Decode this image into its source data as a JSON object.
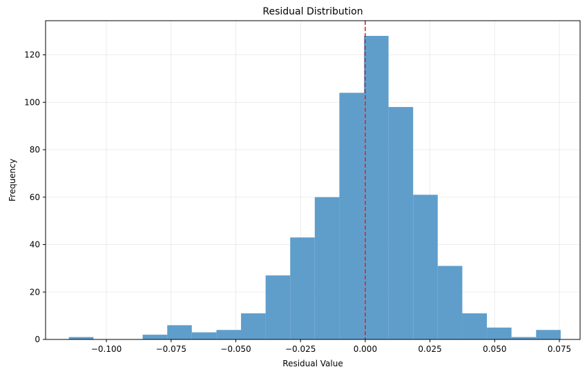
{
  "chart_data": {
    "type": "bar",
    "title": "Residual Distribution",
    "xlabel": "Residual Value",
    "ylabel": "Frequency",
    "xlim": [
      -0.1235,
      0.083
    ],
    "ylim": [
      0,
      134.4
    ],
    "grid": true,
    "bar_color": "#5f9ecb",
    "ref_line": {
      "x": 0.0,
      "color": "#d62728",
      "style": "dashed"
    },
    "bin_edges": [
      -0.1145,
      -0.105,
      -0.0955,
      -0.086,
      -0.0765,
      -0.067,
      -0.0575,
      -0.048,
      -0.0385,
      -0.029,
      -0.0195,
      -0.01,
      -0.0005,
      0.009,
      0.0185,
      0.028,
      0.0375,
      0.047,
      0.0565,
      0.066,
      0.0755
    ],
    "values": [
      1,
      0,
      0,
      2,
      6,
      3,
      4,
      11,
      27,
      43,
      60,
      104,
      128,
      98,
      61,
      31,
      11,
      5,
      1,
      4
    ],
    "xticks": [
      {
        "value": -0.1,
        "label": "−0.100"
      },
      {
        "value": -0.075,
        "label": "−0.075"
      },
      {
        "value": -0.05,
        "label": "−0.050"
      },
      {
        "value": -0.025,
        "label": "−0.025"
      },
      {
        "value": 0.0,
        "label": "0.000"
      },
      {
        "value": 0.025,
        "label": "0.025"
      },
      {
        "value": 0.05,
        "label": "0.050"
      },
      {
        "value": 0.075,
        "label": "0.075"
      }
    ],
    "yticks": [
      {
        "value": 0,
        "label": "0"
      },
      {
        "value": 20,
        "label": "20"
      },
      {
        "value": 40,
        "label": "40"
      },
      {
        "value": 60,
        "label": "60"
      },
      {
        "value": 80,
        "label": "80"
      },
      {
        "value": 100,
        "label": "100"
      },
      {
        "value": 120,
        "label": "120"
      }
    ]
  }
}
